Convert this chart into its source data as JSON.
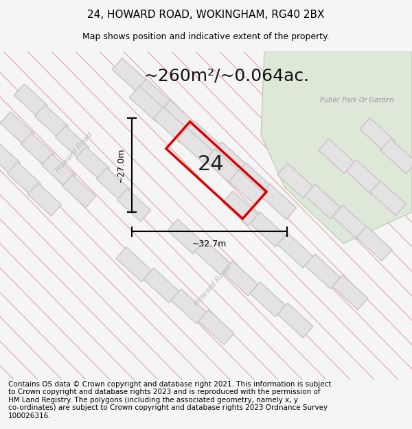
{
  "title": "24, HOWARD ROAD, WOKINGHAM, RG40 2BX",
  "subtitle": "Map shows position and indicative extent of the property.",
  "area_text": "~260m²/~0.064ac.",
  "property_number": "24",
  "width_label": "~32.7m",
  "height_label": "~27.0m",
  "park_label": "Public Park Or Garden",
  "road_label_upper": "Howard Road",
  "road_label_lower": "Howard Road",
  "footer_line1": "Contains OS data © Crown copyright and database right 2021. This information is subject",
  "footer_line2": "to Crown copyright and database rights 2023 and is reproduced with the permission of",
  "footer_line3": "HM Land Registry. The polygons (including the associated geometry, namely x, y",
  "footer_line4": "co-ordinates) are subject to Crown copyright and database rights 2023 Ordnance Survey",
  "footer_line5": "100026316.",
  "bg_color": "#f5f5f5",
  "map_bg": "#eeecec",
  "park_color": "#dde8d8",
  "block_fill": "#e4e2e2",
  "block_stroke": "#c8c4c4",
  "road_line_color": "#e8a0a0",
  "property_fill": "#ffffff",
  "property_stroke": "#dd0000",
  "title_color": "#000000",
  "footer_color": "#000000",
  "title_fontsize": 11,
  "subtitle_fontsize": 9,
  "area_fontsize": 18,
  "footer_fontsize": 7.5
}
